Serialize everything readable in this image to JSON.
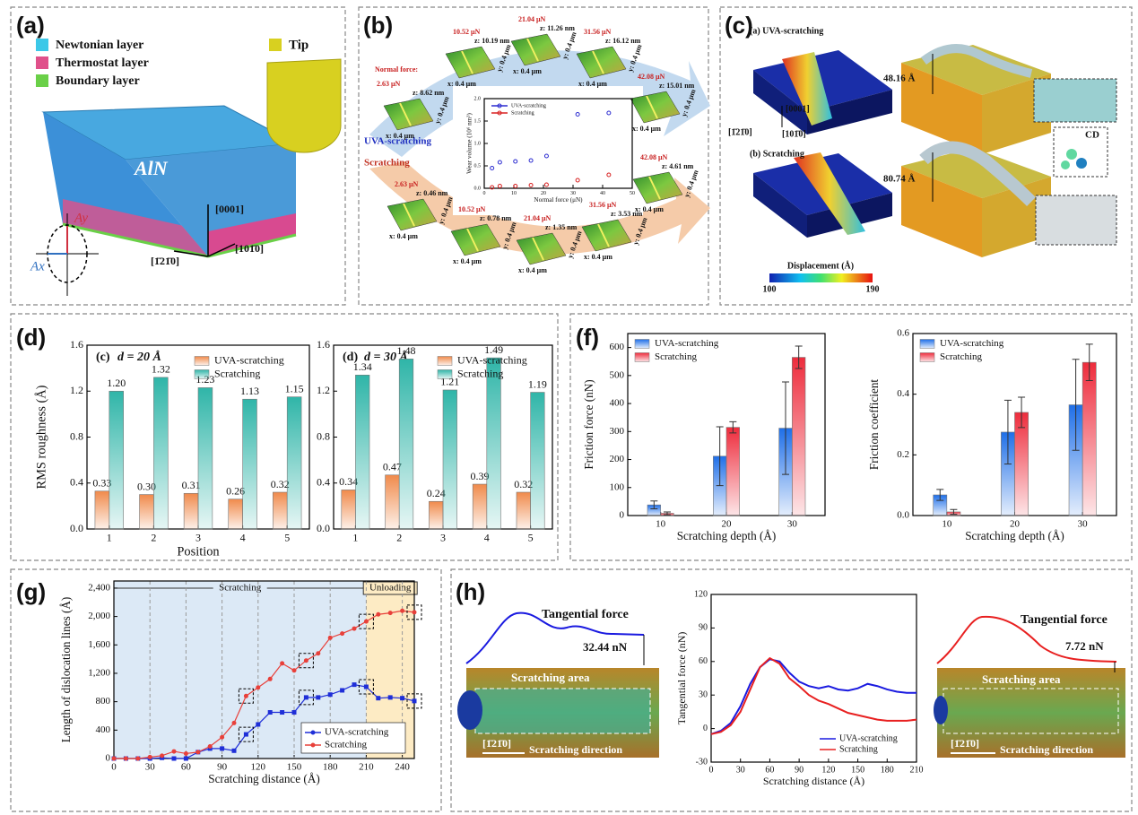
{
  "panels": {
    "a": {
      "label": "(a)",
      "legend": [
        "Newtonian layer",
        "Thermostat layer",
        "Boundary layer"
      ],
      "tip": "Tip",
      "material": "AlN",
      "axes": [
        "[0001]",
        "[1̄21̄0]",
        "[101̄0]"
      ],
      "ellipse_axes": [
        "Ay",
        "Ax"
      ]
    },
    "b": {
      "label": "(b)",
      "uva": "UVA-scratching",
      "scr": "Scratching",
      "force_caption": "Normal force:",
      "scan_x": "x: 0.4 μm",
      "scan_y": "y: 0.4 μm",
      "uva_images": [
        {
          "force": "2.63 μN",
          "z": "z: 8.62 nm"
        },
        {
          "force": "10.52 μN",
          "z": "z: 10.19 nm"
        },
        {
          "force": "21.04 μN",
          "z": "z: 11.26 nm"
        },
        {
          "force": "31.56 μN",
          "z": "z: 16.12 nm"
        },
        {
          "force": "42.08 μN",
          "z": "z: 15.01 nm"
        }
      ],
      "scr_images": [
        {
          "force": "2.63 μN",
          "z": "z: 0.46 nm"
        },
        {
          "force": "10.52 μN",
          "z": "z: 0.78 nm"
        },
        {
          "force": "21.04 μN",
          "z": "z: 1.35 nm"
        },
        {
          "force": "31.56 μN",
          "z": "z: 3.53 nm"
        },
        {
          "force": "42.08 μN",
          "z": "z: 4.61 nm"
        }
      ]
    },
    "c": {
      "label": "(c)",
      "sub_a": "(a)  UVA-scratching",
      "sub_b": "(b)  Scratching",
      "depth_a": "48.16 Å",
      "depth_b": "80.74 Å",
      "defect": "CD",
      "axes": [
        "[0001]",
        "[1̄21̄0]",
        "[101̄0]"
      ],
      "colorbar": {
        "title": "Displacement (Å)",
        "min": 100,
        "max": 190
      }
    },
    "d": {
      "label": "(d)"
    },
    "f": {
      "label": "(f)"
    },
    "g": {
      "label": "(g)"
    },
    "h": {
      "label": "(h)",
      "force_title": "Tangential force",
      "left_force": "32.44 nN",
      "right_force": "7.72 nN",
      "area": "Scratching area",
      "direction": "Scratching direction",
      "orientation": "[1̄21̄0]"
    }
  },
  "chart_data": [
    {
      "type": "scatter",
      "xlabel": "Normal force (μN)",
      "ylabel": "Wear volume (10⁶ nm³)",
      "xlim": [
        0,
        50
      ],
      "xticks": [
        0,
        10,
        20,
        30,
        40,
        50
      ],
      "ylim": [
        0,
        2
      ],
      "yticks": [
        {
          "value": 0,
          "label": "0.0"
        },
        0.5,
        {
          "value": 1,
          "label": "1.0"
        },
        1.5,
        {
          "value": 2,
          "label": "2.0"
        }
      ],
      "x": [
        2.63,
        5.26,
        10.52,
        15.78,
        21.04,
        31.56,
        42.08
      ],
      "legend": "upper left",
      "series": [
        {
          "name": "UVA-scratching",
          "color": "#2b2bd0",
          "values": [
            0.45,
            0.58,
            0.6,
            0.62,
            0.72,
            1.65,
            1.68
          ]
        },
        {
          "name": "Scratching",
          "color": "#d82020",
          "values": [
            0.02,
            0.05,
            0.05,
            0.07,
            0.08,
            0.18,
            0.3
          ]
        }
      ]
    },
    {
      "type": "bar",
      "tag": "(c)",
      "title": "d = 20 Å",
      "ylabel": "RMS roughness (Å)",
      "xlabel": "Position",
      "categories": [
        "1",
        "2",
        "3",
        "4",
        "5"
      ],
      "ylim": [
        0,
        1.6
      ],
      "yticks": [
        {
          "value": 0,
          "label": "0.0"
        },
        0.4,
        0.8,
        1.2,
        1.6
      ],
      "legend": "upper right",
      "series": [
        {
          "name": "UVA-scratching",
          "color": "#f08a4b",
          "values": [
            0.33,
            0.3,
            0.31,
            0.26,
            0.32
          ],
          "value_labels": [
            "0.33",
            "0.30",
            "0.31",
            "0.26",
            "0.32"
          ]
        },
        {
          "name": "Scratching",
          "color": "#2fb5a8",
          "values": [
            1.2,
            1.32,
            1.23,
            1.13,
            1.15
          ],
          "value_labels": [
            "1.20",
            "1.32",
            "1.23",
            "1.13",
            "1.15"
          ]
        }
      ]
    },
    {
      "type": "bar",
      "tag": "(d)",
      "title": "d = 30 Å",
      "categories": [
        "1",
        "2",
        "3",
        "4",
        "5"
      ],
      "ylim": [
        0,
        1.6
      ],
      "yticks": [
        {
          "value": 0,
          "label": "0.0"
        },
        0.4,
        0.8,
        1.2,
        1.6
      ],
      "legend": "upper right",
      "series": [
        {
          "name": "UVA-scratching",
          "color": "#f08a4b",
          "values": [
            0.34,
            0.47,
            0.24,
            0.39,
            0.32
          ],
          "value_labels": [
            "0.34",
            "0.47",
            "0.24",
            "0.39",
            "0.32"
          ]
        },
        {
          "name": "Scratching",
          "color": "#2fb5a8",
          "values": [
            1.34,
            1.48,
            1.21,
            1.49,
            1.19
          ],
          "value_labels": [
            "1.34",
            "1.48",
            "1.21",
            "1.49",
            "1.19"
          ]
        }
      ]
    },
    {
      "type": "bar",
      "ylabel": "Friction force (nN)",
      "xlabel": "Scratching depth (Å)",
      "categories": [
        "10",
        "20",
        "30"
      ],
      "ylim": [
        0,
        650
      ],
      "yticks": [
        0,
        100,
        200,
        300,
        400,
        500,
        600
      ],
      "legend": "upper left",
      "series": [
        {
          "name": "UVA-scratching",
          "color": "#1f6fe8",
          "values": [
            38,
            212,
            312
          ],
          "errors": [
            14,
            105,
            165
          ]
        },
        {
          "name": "Scratching",
          "color": "#ee2c3c",
          "values": [
            8,
            315,
            565
          ],
          "errors": [
            5,
            20,
            40
          ]
        }
      ]
    },
    {
      "type": "bar",
      "ylabel": "Friction coefficient",
      "xlabel": "Scratching depth (Å)",
      "categories": [
        "10",
        "20",
        "30"
      ],
      "ylim": [
        0,
        0.6
      ],
      "yticks": [
        {
          "value": 0,
          "label": "0.0"
        },
        0.2,
        0.4,
        0.6
      ],
      "legend": "upper left",
      "series": [
        {
          "name": "UVA-scratching",
          "color": "#1f6fe8",
          "values": [
            0.068,
            0.275,
            0.365
          ],
          "errors": [
            0.018,
            0.105,
            0.15
          ]
        },
        {
          "name": "Scratching",
          "color": "#ee2c3c",
          "values": [
            0.012,
            0.34,
            0.505
          ],
          "errors": [
            0.008,
            0.05,
            0.06
          ]
        }
      ]
    },
    {
      "type": "line",
      "ylabel": "Length of dislocation lines (Å)",
      "xlabel": "Scratching distance (Å)",
      "xlim": [
        0,
        250
      ],
      "xticks": [
        0,
        30,
        60,
        90,
        120,
        150,
        180,
        210,
        240
      ],
      "ylim": [
        0,
        2500
      ],
      "yticks": [
        0,
        400,
        800,
        {
          "value": 1200,
          "label": "1,200"
        },
        {
          "value": 1600,
          "label": "1,600"
        },
        {
          "value": 2000,
          "label": "2,000"
        },
        {
          "value": 2400,
          "label": "2,400"
        }
      ],
      "grid": "x",
      "legend": "lower right",
      "regions": [
        {
          "label": "Scratching",
          "range": [
            0,
            210
          ],
          "color": "#dce9f6"
        },
        {
          "label": "Unloading",
          "range": [
            210,
            250
          ],
          "color": "#fdebc4"
        }
      ],
      "x": [
        0,
        10,
        20,
        30,
        40,
        50,
        60,
        70,
        80,
        90,
        100,
        110,
        120,
        130,
        140,
        150,
        160,
        170,
        180,
        190,
        200,
        210,
        220,
        230,
        240,
        250
      ],
      "series": [
        {
          "name": "UVA-scratching",
          "color": "#1f2fd8",
          "marker": "square",
          "values": [
            0,
            0,
            0,
            0,
            10,
            0,
            0,
            90,
            140,
            140,
            110,
            340,
            480,
            650,
            650,
            650,
            860,
            860,
            900,
            960,
            1040,
            1010,
            850,
            860,
            850,
            810
          ]
        },
        {
          "name": "Scratching",
          "color": "#e8403a",
          "marker": "circle",
          "values": [
            0,
            0,
            0,
            20,
            40,
            100,
            70,
            90,
            170,
            300,
            500,
            880,
            1000,
            1120,
            1340,
            1240,
            1380,
            1480,
            1700,
            1760,
            1830,
            1930,
            2030,
            2050,
            2080,
            2060
          ]
        }
      ]
    },
    {
      "type": "line",
      "ylabel": "Tangential force (nN)",
      "xlabel": "Scratching distance (Å)",
      "xlim": [
        0,
        210
      ],
      "xticks": [
        0,
        30,
        60,
        90,
        120,
        150,
        180,
        210
      ],
      "ylim": [
        -30,
        120
      ],
      "yticks": [
        -30,
        0,
        30,
        60,
        90,
        120
      ],
      "legend": "lower right",
      "x": [
        0,
        10,
        20,
        30,
        40,
        50,
        60,
        70,
        80,
        90,
        100,
        110,
        120,
        130,
        140,
        150,
        160,
        170,
        180,
        190,
        200,
        210
      ],
      "series": [
        {
          "name": "UVA-scratching",
          "color": "#1a1ae0",
          "values": [
            -5,
            -2,
            5,
            20,
            40,
            55,
            62,
            60,
            50,
            42,
            38,
            36,
            38,
            35,
            34,
            36,
            40,
            38,
            35,
            33,
            32,
            32
          ]
        },
        {
          "name": "Scratching",
          "color": "#e82020",
          "values": [
            -5,
            -3,
            3,
            15,
            35,
            55,
            63,
            58,
            45,
            38,
            30,
            25,
            22,
            18,
            14,
            12,
            10,
            8,
            7,
            7,
            7,
            8
          ]
        }
      ]
    }
  ]
}
